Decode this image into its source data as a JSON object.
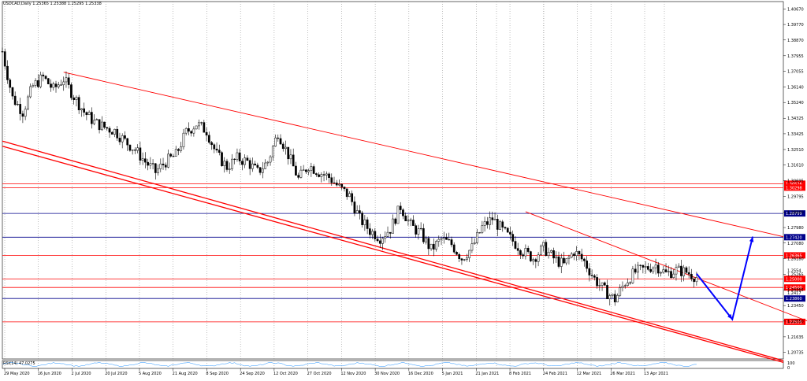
{
  "header": {
    "symbol_line": "USDCAD,Daily  1.25365 1.25388 1.25295 1.25338"
  },
  "indicator": {
    "label": "RSI(14) 47.0275",
    "scale_top": "100",
    "scale_bottom": "0"
  },
  "colors": {
    "background": "#ffffff",
    "candle": "#000000",
    "trendline": "#ff0000",
    "resistance": "#ff0000",
    "support": "#00008b",
    "projection_arrow": "#0000ff",
    "grid": "#808080",
    "rsi_line": "#1e90ff"
  },
  "chart_data": {
    "type": "candlestick",
    "symbol": "USDCAD",
    "timeframe": "Daily",
    "last_ohlc": {
      "open": 1.25365,
      "high": 1.25388,
      "low": 1.25295,
      "close": 1.25338
    },
    "price_ticks": [
      "1.40670",
      "1.39770",
      "1.38870",
      "1.37955",
      "1.37055",
      "1.36140",
      "1.35240",
      "1.34325",
      "1.33425",
      "1.32510",
      "1.31610",
      "1.30695",
      "1.29795",
      "1.28880",
      "1.27980",
      "1.27080",
      "1.26180",
      "1.25265",
      "1.24365",
      "1.23450",
      "1.22550",
      "1.21635",
      "1.20735"
    ],
    "date_ticks": [
      "29 May 2020",
      "16 Jun 2020",
      "2 Jul 2020",
      "20 Jul 2020",
      "5 Aug 2020",
      "21 Aug 2020",
      "8 Sep 2020",
      "24 Sep 2020",
      "12 Oct 2020",
      "27 Oct 2020",
      "12 Nov 2020",
      "30 Nov 2020",
      "16 Dec 2020",
      "5 Jan 2021",
      "21 Jan 2021",
      "8 Feb 2021",
      "24 Feb 2021",
      "12 Mar 2021",
      "26 Mar 2021",
      "13 Apr 2021"
    ],
    "ylim": [
      1.2035,
      1.411
    ],
    "horizontal_levels": [
      {
        "price": 1.30526,
        "label": "1.30526",
        "kind": "resistance"
      },
      {
        "price": 1.30298,
        "label": "1.30298",
        "kind": "resistance"
      },
      {
        "price": 1.28799,
        "label": "1.28799",
        "kind": "support"
      },
      {
        "price": 1.2742,
        "label": "1.27420",
        "kind": "support"
      },
      {
        "price": 1.26365,
        "label": "1.26365",
        "kind": "resistance"
      },
      {
        "price": 1.25,
        "label": "1.25000",
        "kind": "resistance"
      },
      {
        "price": 1.245,
        "label": "1.24500",
        "kind": "resistance"
      },
      {
        "price": 1.2386,
        "label": "1.23860",
        "kind": "support"
      },
      {
        "price": 1.22505,
        "label": "1.22505",
        "kind": "resistance"
      }
    ],
    "right_axis_extra_labels": [
      {
        "price": 1.255,
        "label": "1.2554"
      },
      {
        "price": 1.24185,
        "label": "1.2417"
      }
    ],
    "trend_points": [
      [
        0,
        1.382
      ],
      [
        4,
        1.355
      ],
      [
        8,
        1.347
      ],
      [
        12,
        1.362
      ],
      [
        16,
        1.367
      ],
      [
        20,
        1.36
      ],
      [
        24,
        1.366
      ],
      [
        28,
        1.356
      ],
      [
        32,
        1.347
      ],
      [
        36,
        1.341
      ],
      [
        40,
        1.338
      ],
      [
        44,
        1.336
      ],
      [
        48,
        1.33
      ],
      [
        52,
        1.325
      ],
      [
        56,
        1.318
      ],
      [
        60,
        1.312
      ],
      [
        64,
        1.318
      ],
      [
        68,
        1.322
      ],
      [
        72,
        1.335
      ],
      [
        76,
        1.34
      ],
      [
        80,
        1.336
      ],
      [
        84,
        1.322
      ],
      [
        88,
        1.315
      ],
      [
        92,
        1.32
      ],
      [
        96,
        1.318
      ],
      [
        100,
        1.312
      ],
      [
        104,
        1.318
      ],
      [
        108,
        1.335
      ],
      [
        112,
        1.322
      ],
      [
        116,
        1.308
      ],
      [
        120,
        1.316
      ],
      [
        124,
        1.312
      ],
      [
        128,
        1.309
      ],
      [
        132,
        1.303
      ],
      [
        136,
        1.298
      ],
      [
        140,
        1.285
      ],
      [
        144,
        1.278
      ],
      [
        148,
        1.274
      ],
      [
        152,
        1.279
      ],
      [
        156,
        1.292
      ],
      [
        160,
        1.281
      ],
      [
        164,
        1.276
      ],
      [
        168,
        1.267
      ],
      [
        172,
        1.273
      ],
      [
        176,
        1.27
      ],
      [
        180,
        1.262
      ],
      [
        184,
        1.268
      ],
      [
        188,
        1.28
      ],
      [
        192,
        1.285
      ],
      [
        196,
        1.278
      ],
      [
        200,
        1.272
      ],
      [
        204,
        1.266
      ],
      [
        208,
        1.262
      ],
      [
        212,
        1.268
      ],
      [
        216,
        1.262
      ],
      [
        220,
        1.258
      ],
      [
        224,
        1.266
      ],
      [
        228,
        1.26
      ],
      [
        232,
        1.25
      ],
      [
        236,
        1.243
      ],
      [
        240,
        1.238
      ],
      [
        244,
        1.248
      ],
      [
        248,
        1.254
      ],
      [
        252,
        1.256
      ],
      [
        256,
        1.258
      ],
      [
        260,
        1.253
      ],
      [
        264,
        1.255
      ],
      [
        268,
        1.254
      ],
      [
        272,
        1.251
      ]
    ],
    "trend_lines": [
      {
        "from": [
          24,
          1.37
        ],
        "to": [
          306,
          1.2745
        ],
        "name": "upper-channel"
      },
      {
        "from": [
          0,
          1.33
        ],
        "to": [
          306,
          1.2025
        ],
        "name": "lower-channel-a"
      },
      {
        "from": [
          0,
          1.327
        ],
        "to": [
          306,
          1.2015
        ],
        "name": "lower-channel-b"
      },
      {
        "from": [
          205,
          1.289
        ],
        "to": [
          325,
          1.22
        ],
        "name": "inner-channel"
      }
    ],
    "projection_path": [
      [
        272,
        1.253
      ],
      [
        286,
        1.2265
      ],
      [
        294,
        1.2745
      ]
    ]
  }
}
